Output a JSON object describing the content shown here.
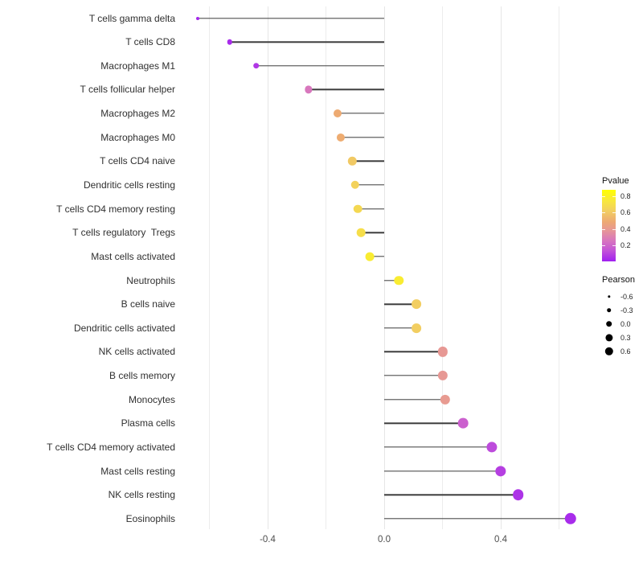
{
  "chart_data": {
    "type": "scatter",
    "variant": "lollipop-horizontal",
    "title": "",
    "xlabel": "",
    "ylabel": "",
    "grid": "vertical-only",
    "categories": [
      "T cells gamma delta",
      "T cells CD8",
      "Macrophages M1",
      "T cells follicular helper",
      "Macrophages M2",
      "Macrophages M0",
      "T cells CD4 naive",
      "Dendritic cells resting",
      "T cells CD4 memory resting",
      "T cells regulatory  Tregs",
      "Mast cells activated",
      "Neutrophils",
      "B cells naive",
      "Dendritic cells activated",
      "NK cells activated",
      "B cells memory",
      "Monocytes",
      "Plasma cells",
      "T cells CD4 memory activated",
      "Mast cells resting",
      "NK cells resting",
      "Eosinophils"
    ],
    "series": [
      {
        "name": "Pearson",
        "values": [
          -0.64,
          -0.53,
          -0.44,
          -0.26,
          -0.16,
          -0.15,
          -0.11,
          -0.1,
          -0.09,
          -0.08,
          -0.05,
          0.05,
          0.11,
          0.11,
          0.2,
          0.2,
          0.21,
          0.27,
          0.37,
          0.4,
          0.46,
          0.64
        ]
      },
      {
        "name": "Pvalue",
        "values": [
          0.02,
          0.03,
          0.06,
          0.26,
          0.49,
          0.5,
          0.6,
          0.64,
          0.67,
          0.7,
          0.77,
          0.77,
          0.62,
          0.62,
          0.39,
          0.39,
          0.4,
          0.18,
          0.11,
          0.08,
          0.05,
          0.03
        ]
      }
    ],
    "x_axis": {
      "tick_labels": [
        "-0.4",
        "0.0",
        "0.4"
      ],
      "tick_values": [
        -0.4,
        0.0,
        0.4
      ],
      "gridline_values": [
        -0.6,
        -0.4,
        -0.2,
        0.0,
        0.2,
        0.4,
        0.6
      ],
      "xlim": [
        -0.71,
        0.7
      ]
    },
    "legend": {
      "pvalue": {
        "title": "Pvalue",
        "tick_labels": [
          "0.8",
          "0.6",
          "0.4",
          "0.2"
        ],
        "tick_values": [
          0.8,
          0.6,
          0.4,
          0.2
        ],
        "domain": [
          0.0,
          0.88
        ],
        "gradient_stops": [
          {
            "f": 0.0,
            "color": "#a020f0"
          },
          {
            "f": 0.15,
            "color": "#c353d8"
          },
          {
            "f": 0.3,
            "color": "#d978bc"
          },
          {
            "f": 0.45,
            "color": "#e89a92"
          },
          {
            "f": 0.55,
            "color": "#eda873"
          },
          {
            "f": 0.7,
            "color": "#f2cd62"
          },
          {
            "f": 0.85,
            "color": "#f8e83c"
          },
          {
            "f": 1.0,
            "color": "#ffff00"
          }
        ]
      },
      "pearson": {
        "title": "Pearson",
        "item_labels": [
          "-0.6",
          "-0.3",
          "0.0",
          "0.3",
          "0.6"
        ],
        "item_values": [
          -0.6,
          -0.3,
          0.0,
          0.3,
          0.6
        ],
        "dot_color": "#000000"
      }
    },
    "colors": {
      "stem": "#3c3c3c",
      "gridline": "#ececec",
      "x_tick_text": "#4d4d4d",
      "y_label_text": "#303030",
      "background": "#ffffff"
    }
  }
}
